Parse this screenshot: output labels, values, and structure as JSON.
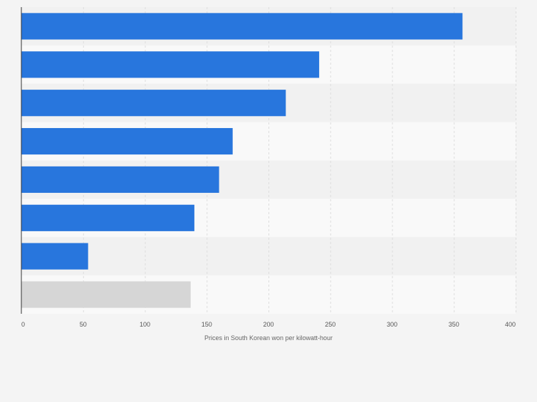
{
  "chart_data": {
    "type": "bar",
    "orientation": "horizontal",
    "title": "",
    "xlabel": "Prices in South Korean won per kilowatt-hour",
    "ylabel": "",
    "xlim": [
      0,
      400
    ],
    "xticks": [
      0,
      50,
      100,
      150,
      200,
      250,
      300,
      350,
      400
    ],
    "grid": true,
    "categories": [
      "",
      "",
      "",
      "",
      "",
      "",
      "",
      ""
    ],
    "values": [
      357,
      241,
      214,
      171,
      160,
      140,
      54,
      137
    ],
    "bar_colors": [
      "#2876dd",
      "#2876dd",
      "#2876dd",
      "#2876dd",
      "#2876dd",
      "#2876dd",
      "#2876dd",
      "#d6d6d6"
    ]
  },
  "colors": {
    "page_bg": "#f4f4f4",
    "band_odd": "#f1f1f1",
    "band_even": "#f9f9f9",
    "gridline": "#dddddd",
    "axis": "#333333",
    "tick_text": "#555555",
    "label_text": "#666666"
  }
}
